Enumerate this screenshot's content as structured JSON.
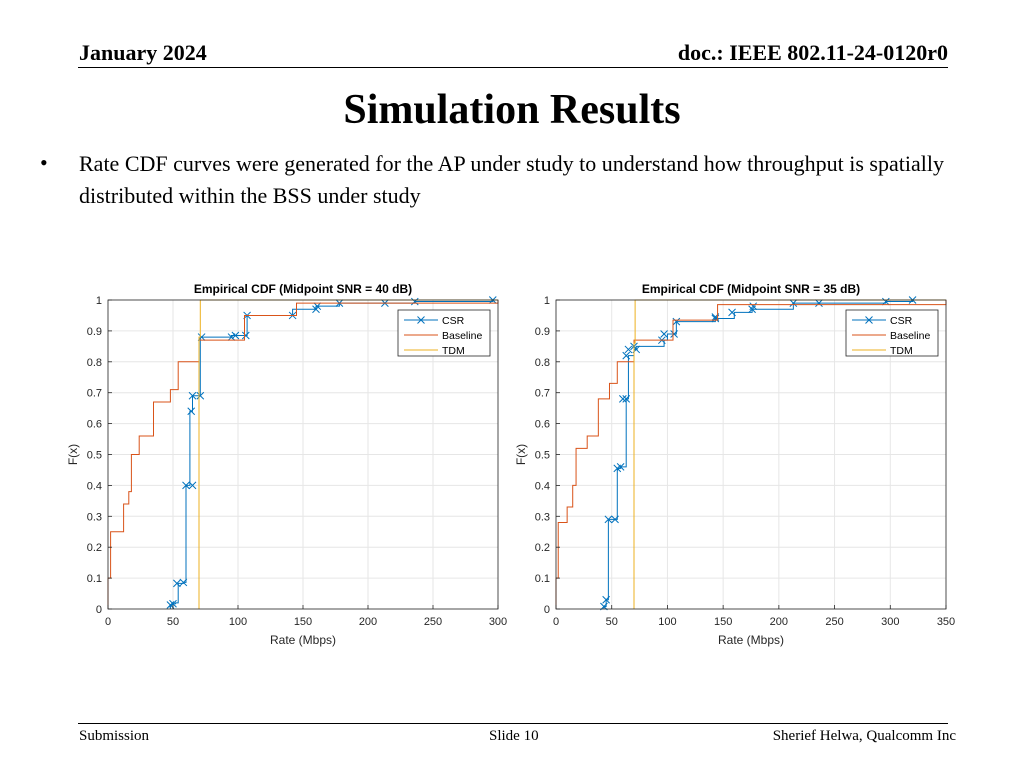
{
  "header": {
    "date": "January 2024",
    "doc": "doc.: IEEE 802.11-24-0120r0"
  },
  "title": "Simulation Results",
  "bullet": {
    "marker": "•",
    "text": "Rate CDF curves were generated for the AP under study to understand how throughput is spatially distributed within the BSS under study"
  },
  "footer": {
    "left": "Submission",
    "center": "Slide 10",
    "right": "Sherief Helwa, Qualcomm Inc"
  },
  "colors": {
    "csr": "#0072BD",
    "baseline": "#D95319",
    "tdm": "#EDB120",
    "grid": "#e6e6e6",
    "axis": "#262626"
  },
  "chart_data": [
    {
      "type": "line",
      "title": "Empirical CDF (Midpoint SNR = 40 dB)",
      "xlabel": "Rate (Mbps)",
      "ylabel": "F(x)",
      "xlim": [
        0,
        300
      ],
      "ylim": [
        0,
        1
      ],
      "xticks": [
        0,
        50,
        100,
        150,
        200,
        250,
        300
      ],
      "yticks": [
        0,
        0.1,
        0.2,
        0.3,
        0.4,
        0.5,
        0.6,
        0.7,
        0.8,
        0.9,
        1
      ],
      "grid": true,
      "legend": "top-right",
      "series": [
        {
          "name": "CSR",
          "step": true,
          "marker": "x",
          "x": [
            48,
            50,
            52,
            54,
            58,
            60,
            63,
            65,
            71,
            95,
            107,
            142,
            160,
            178,
            213,
            236,
            296
          ],
          "y": [
            0.013,
            0.017,
            0.02,
            0.083,
            0.086,
            0.4,
            0.64,
            0.69,
            0.88,
            0.885,
            0.95,
            0.97,
            0.98,
            0.99,
            0.99,
            0.995,
            1.0
          ],
          "markers_x": [
            48,
            50,
            53,
            58,
            60,
            65,
            64,
            65,
            71,
            72,
            95,
            98,
            106,
            107,
            142,
            160,
            161,
            178,
            213,
            236,
            296
          ],
          "markers_y": [
            0.013,
            0.017,
            0.083,
            0.086,
            0.4,
            0.4,
            0.64,
            0.69,
            0.69,
            0.88,
            0.88,
            0.885,
            0.885,
            0.95,
            0.95,
            0.97,
            0.98,
            0.99,
            0.99,
            0.995,
            1.0
          ]
        },
        {
          "name": "Baseline",
          "step": true,
          "x": [
            0,
            2,
            12,
            16,
            18,
            24,
            35,
            48,
            54,
            70,
            105,
            145,
            300
          ],
          "y": [
            0.1,
            0.25,
            0.34,
            0.38,
            0.5,
            0.56,
            0.67,
            0.71,
            0.8,
            0.87,
            0.95,
            0.99,
            1.0
          ]
        },
        {
          "name": "TDM",
          "step": true,
          "x": [
            70,
            71
          ],
          "y": [
            0.88,
            1.0
          ]
        }
      ]
    },
    {
      "type": "line",
      "title": "Empirical CDF (Midpoint SNR = 35 dB)",
      "xlabel": "Rate (Mbps)",
      "ylabel": "F(x)",
      "xlim": [
        0,
        350
      ],
      "ylim": [
        0,
        1
      ],
      "xticks": [
        0,
        50,
        100,
        150,
        200,
        250,
        300,
        350
      ],
      "yticks": [
        0,
        0.1,
        0.2,
        0.3,
        0.4,
        0.5,
        0.6,
        0.7,
        0.8,
        0.9,
        1
      ],
      "grid": true,
      "legend": "top-right",
      "series": [
        {
          "name": "CSR",
          "step": true,
          "marker": "x",
          "x": [
            43,
            45,
            47,
            53,
            55,
            58,
            63,
            65,
            70,
            72,
            97,
            100,
            108,
            143,
            160,
            176,
            213,
            236,
            296,
            320
          ],
          "y": [
            0.008,
            0.03,
            0.29,
            0.29,
            0.455,
            0.46,
            0.68,
            0.82,
            0.84,
            0.85,
            0.87,
            0.89,
            0.93,
            0.94,
            0.96,
            0.97,
            0.99,
            0.99,
            0.995,
            1.0
          ],
          "markers_x": [
            43,
            45,
            47,
            53,
            55,
            58,
            60,
            63,
            63,
            65,
            70,
            72,
            95,
            97,
            106,
            108,
            143,
            143,
            158,
            176,
            177,
            213,
            236,
            296,
            320
          ],
          "markers_y": [
            0.008,
            0.03,
            0.29,
            0.29,
            0.455,
            0.46,
            0.68,
            0.68,
            0.82,
            0.84,
            0.85,
            0.84,
            0.87,
            0.89,
            0.89,
            0.93,
            0.94,
            0.945,
            0.96,
            0.97,
            0.98,
            0.99,
            0.99,
            0.995,
            1.0
          ]
        },
        {
          "name": "Baseline",
          "step": true,
          "x": [
            0,
            2,
            10,
            15,
            18,
            28,
            38,
            48,
            55,
            70,
            105,
            145,
            350
          ],
          "y": [
            0.1,
            0.28,
            0.33,
            0.4,
            0.52,
            0.56,
            0.68,
            0.73,
            0.8,
            0.87,
            0.935,
            0.985,
            1.0
          ]
        },
        {
          "name": "TDM",
          "step": true,
          "x": [
            70,
            71
          ],
          "y": [
            0.86,
            1.0
          ]
        }
      ]
    }
  ]
}
